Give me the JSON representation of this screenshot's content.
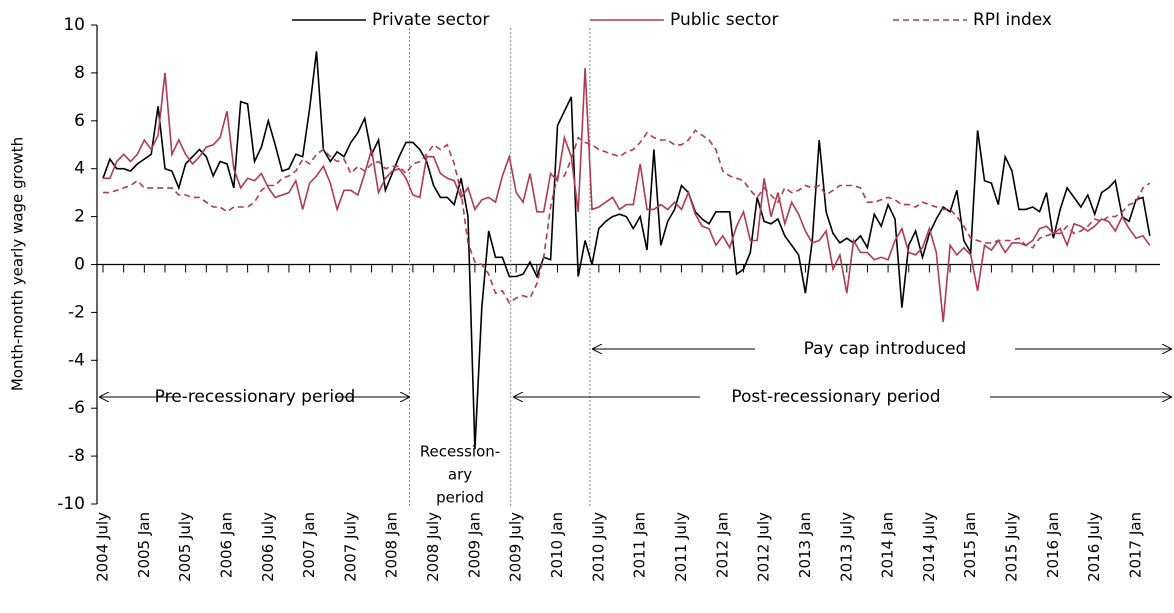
{
  "chart_data": {
    "type": "line",
    "y_label": "Month-month yearly wage growth",
    "categories": [
      "2004 July",
      null,
      null,
      null,
      null,
      null,
      "2005 Jan",
      null,
      null,
      null,
      null,
      null,
      "2005 July",
      null,
      null,
      null,
      null,
      null,
      "2006 Jan",
      null,
      null,
      null,
      null,
      null,
      "2006 July",
      null,
      null,
      null,
      null,
      null,
      "2007 Jan",
      null,
      null,
      null,
      null,
      null,
      "2007 July",
      null,
      null,
      null,
      null,
      null,
      "2008 Jan",
      null,
      null,
      null,
      null,
      null,
      "2008 July",
      null,
      null,
      null,
      null,
      null,
      "2009 Jan",
      null,
      null,
      null,
      null,
      null,
      "2009 July",
      null,
      null,
      null,
      null,
      null,
      "2010 Jan",
      null,
      null,
      null,
      null,
      null,
      "2010 July",
      null,
      null,
      null,
      null,
      null,
      "2011 Jan",
      null,
      null,
      null,
      null,
      null,
      "2011 July",
      null,
      null,
      null,
      null,
      null,
      "2012 Jan",
      null,
      null,
      null,
      null,
      null,
      "2012 July",
      null,
      null,
      null,
      null,
      null,
      "2013 Jan",
      null,
      null,
      null,
      null,
      null,
      "2013 July",
      null,
      null,
      null,
      null,
      null,
      "2014 Jan",
      null,
      null,
      null,
      null,
      null,
      "2014 July",
      null,
      null,
      null,
      null,
      null,
      "2015 Jan",
      null,
      null,
      null,
      null,
      null,
      "2015 July",
      null,
      null,
      null,
      null,
      null,
      "2016 Jan",
      null,
      null,
      null,
      null,
      null,
      "2016 July",
      null,
      null,
      null,
      null,
      null,
      "2017 Jan",
      null,
      null
    ],
    "series": [
      {
        "name": "Private sector",
        "color": "#000000",
        "dash": false,
        "values": [
          3.6,
          4.4,
          4.0,
          4.0,
          3.9,
          4.2,
          4.4,
          4.6,
          6.6,
          4.0,
          3.9,
          3.2,
          4.2,
          4.5,
          4.8,
          4.5,
          3.7,
          4.3,
          4.2,
          3.2,
          6.8,
          6.7,
          4.3,
          4.9,
          6.0,
          5.0,
          3.9,
          4.0,
          4.6,
          4.5,
          6.5,
          8.9,
          4.8,
          4.3,
          4.7,
          4.5,
          5.1,
          5.5,
          6.1,
          4.6,
          5.2,
          3.1,
          3.8,
          4.5,
          5.1,
          5.1,
          4.8,
          4.3,
          3.3,
          2.8,
          2.8,
          2.5,
          3.6,
          2.0,
          -7.7,
          -1.8,
          1.4,
          0.3,
          0.3,
          -0.5,
          -0.5,
          -0.4,
          0.1,
          -0.5,
          0.3,
          0.2,
          5.8,
          6.4,
          7.0,
          -0.5,
          1.0,
          0.0,
          1.5,
          1.8,
          2.0,
          2.1,
          2.0,
          1.5,
          2.0,
          0.6,
          4.8,
          0.8,
          1.8,
          2.3,
          3.3,
          3.0,
          2.2,
          1.9,
          1.7,
          2.2,
          2.2,
          2.2,
          -0.4,
          -0.2,
          0.5,
          2.8,
          1.8,
          1.7,
          1.9,
          1.2,
          0.8,
          0.4,
          -1.2,
          1.0,
          5.2,
          2.2,
          1.3,
          0.9,
          1.1,
          0.9,
          1.2,
          0.7,
          2.1,
          1.6,
          2.5,
          1.9,
          -1.8,
          0.8,
          1.4,
          0.3,
          1.3,
          1.9,
          2.4,
          2.2,
          3.1,
          1.0,
          0.5,
          5.6,
          3.5,
          3.4,
          2.5,
          4.5,
          3.9,
          2.3,
          2.3,
          2.4,
          2.2,
          3.0,
          1.1,
          2.3,
          3.2,
          2.8,
          2.4,
          2.9,
          2.1,
          3.0,
          3.2,
          3.5,
          2.0,
          1.8,
          2.7,
          2.8,
          1.2
        ]
      },
      {
        "name": "Public sector",
        "color": "#b03a52",
        "dash": false,
        "values": [
          3.6,
          3.6,
          4.3,
          4.6,
          4.3,
          4.6,
          5.2,
          4.8,
          5.4,
          8.0,
          4.6,
          5.2,
          4.6,
          4.2,
          4.5,
          4.9,
          5.0,
          5.3,
          6.4,
          4.0,
          3.2,
          3.6,
          3.5,
          3.8,
          3.2,
          2.8,
          2.9,
          3.0,
          3.5,
          2.3,
          3.4,
          3.7,
          4.1,
          3.4,
          2.3,
          3.1,
          3.1,
          2.9,
          3.8,
          4.8,
          3.0,
          3.6,
          3.9,
          4.0,
          3.6,
          2.9,
          2.8,
          4.5,
          4.5,
          3.8,
          3.6,
          3.5,
          2.8,
          3.2,
          2.3,
          2.7,
          2.8,
          2.6,
          3.7,
          4.5,
          3.0,
          2.6,
          3.8,
          2.2,
          2.2,
          3.8,
          3.5,
          5.3,
          4.5,
          2.2,
          8.2,
          2.3,
          2.4,
          2.6,
          2.8,
          2.3,
          2.5,
          2.5,
          4.2,
          2.3,
          2.3,
          2.5,
          2.3,
          2.6,
          2.3,
          3.0,
          2.1,
          1.6,
          1.5,
          0.8,
          1.2,
          0.7,
          1.6,
          2.2,
          1.0,
          1.0,
          3.6,
          2.0,
          3.0,
          1.7,
          2.6,
          2.1,
          1.4,
          0.9,
          1.0,
          1.4,
          -0.2,
          0.4,
          -1.2,
          1.0,
          0.5,
          0.5,
          0.2,
          0.3,
          0.2,
          1.0,
          1.5,
          0.5,
          0.4,
          0.7,
          1.5,
          0.5,
          -2.4,
          0.8,
          0.4,
          0.7,
          0.4,
          -1.1,
          0.8,
          0.6,
          1.0,
          0.5,
          0.9,
          0.9,
          0.8,
          1.0,
          1.5,
          1.6,
          1.3,
          1.5,
          0.8,
          1.7,
          1.6,
          1.4,
          1.6,
          1.9,
          1.8,
          1.4,
          2.0,
          1.5,
          1.1,
          1.2,
          0.8
        ]
      },
      {
        "name": "RPI index",
        "color": "#b03a52",
        "dash": true,
        "values": [
          3.0,
          3.0,
          3.1,
          3.2,
          3.3,
          3.5,
          3.2,
          3.2,
          3.2,
          3.2,
          3.2,
          2.9,
          2.9,
          2.8,
          2.8,
          2.6,
          2.4,
          2.4,
          2.2,
          2.4,
          2.4,
          2.4,
          2.6,
          3.1,
          3.3,
          3.3,
          3.6,
          3.7,
          3.9,
          4.4,
          4.2,
          4.6,
          4.8,
          4.5,
          4.3,
          4.4,
          3.8,
          4.1,
          3.9,
          4.2,
          4.3,
          4.0,
          4.1,
          4.1,
          3.8,
          4.2,
          4.3,
          4.6,
          5.0,
          4.8,
          5.0,
          4.2,
          3.0,
          0.9,
          0.1,
          0.0,
          -0.4,
          -1.2,
          -1.1,
          -1.6,
          -1.4,
          -1.3,
          -1.4,
          -0.8,
          0.3,
          2.4,
          3.7,
          3.7,
          4.4,
          5.3,
          5.1,
          5.0,
          4.8,
          4.7,
          4.6,
          4.5,
          4.7,
          4.8,
          5.1,
          5.5,
          5.3,
          5.2,
          5.2,
          5.0,
          5.0,
          5.2,
          5.6,
          5.4,
          5.2,
          4.8,
          3.9,
          3.7,
          3.6,
          3.5,
          3.1,
          2.8,
          3.2,
          2.9,
          2.6,
          3.2,
          3.0,
          3.1,
          3.3,
          3.2,
          3.3,
          2.9,
          3.1,
          3.3,
          3.3,
          3.3,
          3.2,
          2.6,
          2.6,
          2.7,
          2.8,
          2.7,
          2.5,
          2.5,
          2.4,
          2.6,
          2.5,
          2.4,
          2.3,
          2.3,
          2.0,
          1.6,
          1.1,
          1.0,
          0.9,
          0.9,
          1.0,
          1.0,
          1.0,
          1.1,
          0.8,
          0.7,
          1.1,
          1.2,
          1.3,
          1.3,
          1.6,
          1.3,
          1.4,
          1.6,
          1.9,
          1.8,
          2.0,
          2.0,
          2.2,
          2.5,
          2.6,
          3.2,
          3.4
        ]
      }
    ],
    "ylim": [
      -10,
      10
    ],
    "yticks": [
      -10,
      -8,
      -6,
      -4,
      -2,
      0,
      2,
      4,
      6,
      8,
      10
    ],
    "legend": "top",
    "annotations": [
      "Pre-recessionary period",
      "Recession-",
      "ary",
      "period",
      "Post-recessionary period",
      "Pay cap introduced"
    ]
  }
}
